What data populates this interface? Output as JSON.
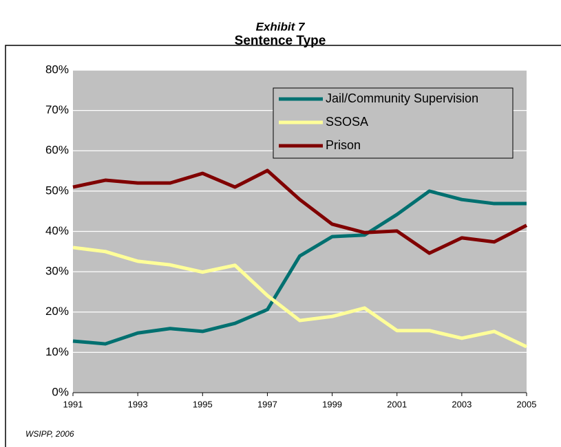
{
  "chart_data": {
    "type": "line",
    "title": "Sentence Type",
    "subtitle": "Exhibit 7",
    "source": "WSIPP, 2006",
    "x": [
      1991,
      1992,
      1993,
      1994,
      1995,
      1996,
      1997,
      1998,
      1999,
      2000,
      2001,
      2002,
      2003,
      2004,
      2005
    ],
    "xlim": [
      1991,
      2005
    ],
    "xticks": [
      1991,
      1993,
      1995,
      1997,
      1999,
      2001,
      2003,
      2005
    ],
    "ylim": [
      0,
      80
    ],
    "yticks": [
      {
        "value": 0,
        "label": "0%"
      },
      {
        "value": 10,
        "label": "10%"
      },
      {
        "value": 20,
        "label": "20%"
      },
      {
        "value": 30,
        "label": "30%"
      },
      {
        "value": 40,
        "label": "40%"
      },
      {
        "value": 50,
        "label": "50%"
      },
      {
        "value": 60,
        "label": "60%"
      },
      {
        "value": 70,
        "label": "70%"
      },
      {
        "value": 80,
        "label": "80%"
      }
    ],
    "grid": true,
    "legend": "upper right",
    "series": [
      {
        "name": "Jail/Community Supervision",
        "color": "#007070",
        "values": [
          12.8,
          12.1,
          14.8,
          15.9,
          15.2,
          17.2,
          20.6,
          33.9,
          38.7,
          39.1,
          44.2,
          50.0,
          47.9,
          46.9,
          46.9
        ]
      },
      {
        "name": "SSOSA",
        "color": "#ffff99",
        "values": [
          36.0,
          35.0,
          32.6,
          31.7,
          29.9,
          31.6,
          24.1,
          17.9,
          18.9,
          21.0,
          15.4,
          15.4,
          13.5,
          15.2,
          11.4
        ]
      },
      {
        "name": "Prison",
        "color": "#800000",
        "values": [
          51.0,
          52.7,
          52.0,
          52.0,
          54.4,
          51.0,
          55.1,
          47.9,
          41.8,
          39.7,
          40.1,
          34.6,
          38.4,
          37.4,
          41.5
        ]
      }
    ]
  }
}
